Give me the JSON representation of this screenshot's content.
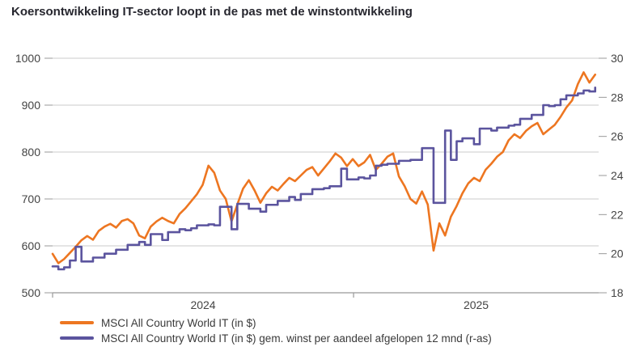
{
  "title": "Koersontwikkeling IT-sector loopt in de pas met de winstontwikkeling",
  "colors": {
    "orange": "#ED7621",
    "purple": "#5B549E",
    "grid": "#CBCBCB",
    "axis": "#999999",
    "text": "#444444",
    "title": "#26262E"
  },
  "legend": [
    {
      "label": "MSCI All Country World IT (in $)",
      "color": "#ED7621"
    },
    {
      "label": "MSCI All Country World IT (in $) gem. winst per aandeel afgelopen 12 mnd (r-as)",
      "color": "#5B549E"
    }
  ],
  "chart_data": {
    "type": "line",
    "title": "Koersontwikkeling IT-sector loopt in de pas met de winstontwikkeling",
    "grid": "horizontal",
    "legend_position": "bottom-left",
    "x_axis": {
      "unit": "weeks since 2024-01-01",
      "x_range": [
        0,
        94.6
      ],
      "tick_positions": [
        0,
        52.14
      ],
      "tick_labels": [
        "2024",
        "2025"
      ]
    },
    "left_axis": {
      "ticks": [
        500,
        600,
        700,
        800,
        900,
        1000
      ],
      "range": [
        500,
        1000
      ]
    },
    "right_axis": {
      "ticks": [
        18,
        20,
        22,
        24,
        26,
        28,
        30
      ],
      "range": [
        18,
        30
      ]
    },
    "series": [
      {
        "name": "MSCI All Country World IT (in $)",
        "axis": "left",
        "color": "#ED7621",
        "interpolation": "linear",
        "x_step_weeks": 1,
        "values": [
          583,
          563,
          572,
          585,
          598,
          612,
          621,
          613,
          632,
          641,
          647,
          639,
          653,
          657,
          648,
          622,
          616,
          641,
          652,
          660,
          653,
          648,
          668,
          680,
          695,
          710,
          730,
          771,
          756,
          718,
          700,
          652,
          688,
          722,
          740,
          718,
          692,
          712,
          726,
          718,
          732,
          745,
          738,
          750,
          762,
          768,
          750,
          765,
          780,
          797,
          788,
          770,
          785,
          770,
          778,
          794,
          762,
          775,
          790,
          797,
          748,
          727,
          700,
          690,
          716,
          688,
          590,
          648,
          622,
          662,
          685,
          712,
          733,
          745,
          738,
          762,
          775,
          790,
          800,
          825,
          838,
          830,
          845,
          855,
          862,
          838,
          848,
          858,
          875,
          895,
          910,
          945,
          970,
          948,
          965
        ]
      },
      {
        "name": "MSCI All Country World IT (in $) gem. winst per aandeel afgelopen 12 mnd (r-as)",
        "axis": "right",
        "color": "#5B549E",
        "interpolation": "step",
        "x_step_weeks": 1,
        "values": [
          19.35,
          19.2,
          19.3,
          19.65,
          20.35,
          19.6,
          19.6,
          19.8,
          19.8,
          20.0,
          20.0,
          20.2,
          20.2,
          20.45,
          20.45,
          20.6,
          20.45,
          21.0,
          21.0,
          20.7,
          21.1,
          21.1,
          21.25,
          21.2,
          21.3,
          21.45,
          21.45,
          21.5,
          21.45,
          22.4,
          22.4,
          21.25,
          22.55,
          22.55,
          22.3,
          22.3,
          22.15,
          22.5,
          22.5,
          22.7,
          22.7,
          22.9,
          22.75,
          23.05,
          23.05,
          23.3,
          23.3,
          23.35,
          23.45,
          23.45,
          24.35,
          23.8,
          23.8,
          23.9,
          23.85,
          24.0,
          24.5,
          24.55,
          24.6,
          24.6,
          24.75,
          24.75,
          24.8,
          24.8,
          25.4,
          25.4,
          22.6,
          22.6,
          26.3,
          24.8,
          25.75,
          25.9,
          25.9,
          25.6,
          26.4,
          26.4,
          26.3,
          26.45,
          26.45,
          26.55,
          26.6,
          26.9,
          26.9,
          27.1,
          27.1,
          27.6,
          27.55,
          27.6,
          27.9,
          28.1,
          28.1,
          28.2,
          28.35,
          28.3,
          28.5
        ]
      }
    ]
  }
}
